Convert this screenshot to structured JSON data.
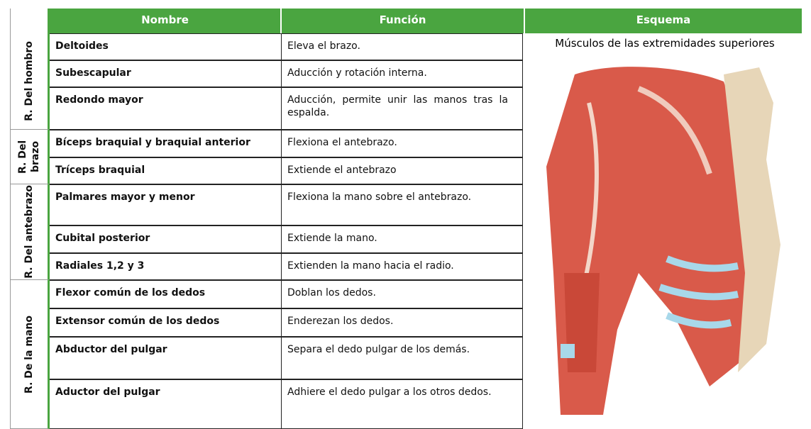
{
  "header": {
    "region": "",
    "name": "Nombre",
    "function": "Función",
    "scheme": "Esquema"
  },
  "scheme_caption": "Músculos de las extremidades superiores",
  "regions": [
    {
      "label": "R. Del hombro",
      "rows": [
        {
          "name": "Deltoides",
          "function": "Eleva el brazo."
        },
        {
          "name": "Subescapular",
          "function": "Aducción y rotación interna."
        },
        {
          "name": "Redondo mayor",
          "function": "Aducción, permite unir las manos tras la espalda."
        }
      ]
    },
    {
      "label": "R. Del brazo",
      "rows": [
        {
          "name": "Bíceps braquial y braquial anterior",
          "function": "Flexiona el antebrazo."
        },
        {
          "name": "Tríceps braquial",
          "function": "Extiende el antebrazo"
        }
      ]
    },
    {
      "label": "R. Del antebrazo",
      "rows": [
        {
          "name": "Palmares mayor y menor",
          "function": "Flexiona la mano sobre el antebrazo."
        },
        {
          "name": "Cubital posterior",
          "function": "Extiende la mano."
        },
        {
          "name": "Radiales 1,2 y 3",
          "function": "Extienden la mano hacia el radio."
        }
      ]
    },
    {
      "label": "R. De la mano",
      "rows": [
        {
          "name": "Flexor común de los dedos",
          "function": "Doblan los dedos."
        },
        {
          "name": "Extensor común de los dedos",
          "function": "Enderezan los dedos."
        },
        {
          "name": "Abductor del pulgar",
          "function": "Separa el dedo pulgar de los demás."
        },
        {
          "name": "Aductor del pulgar",
          "function": "Adhiere el dedo pulgar a los otros dedos."
        }
      ]
    }
  ]
}
